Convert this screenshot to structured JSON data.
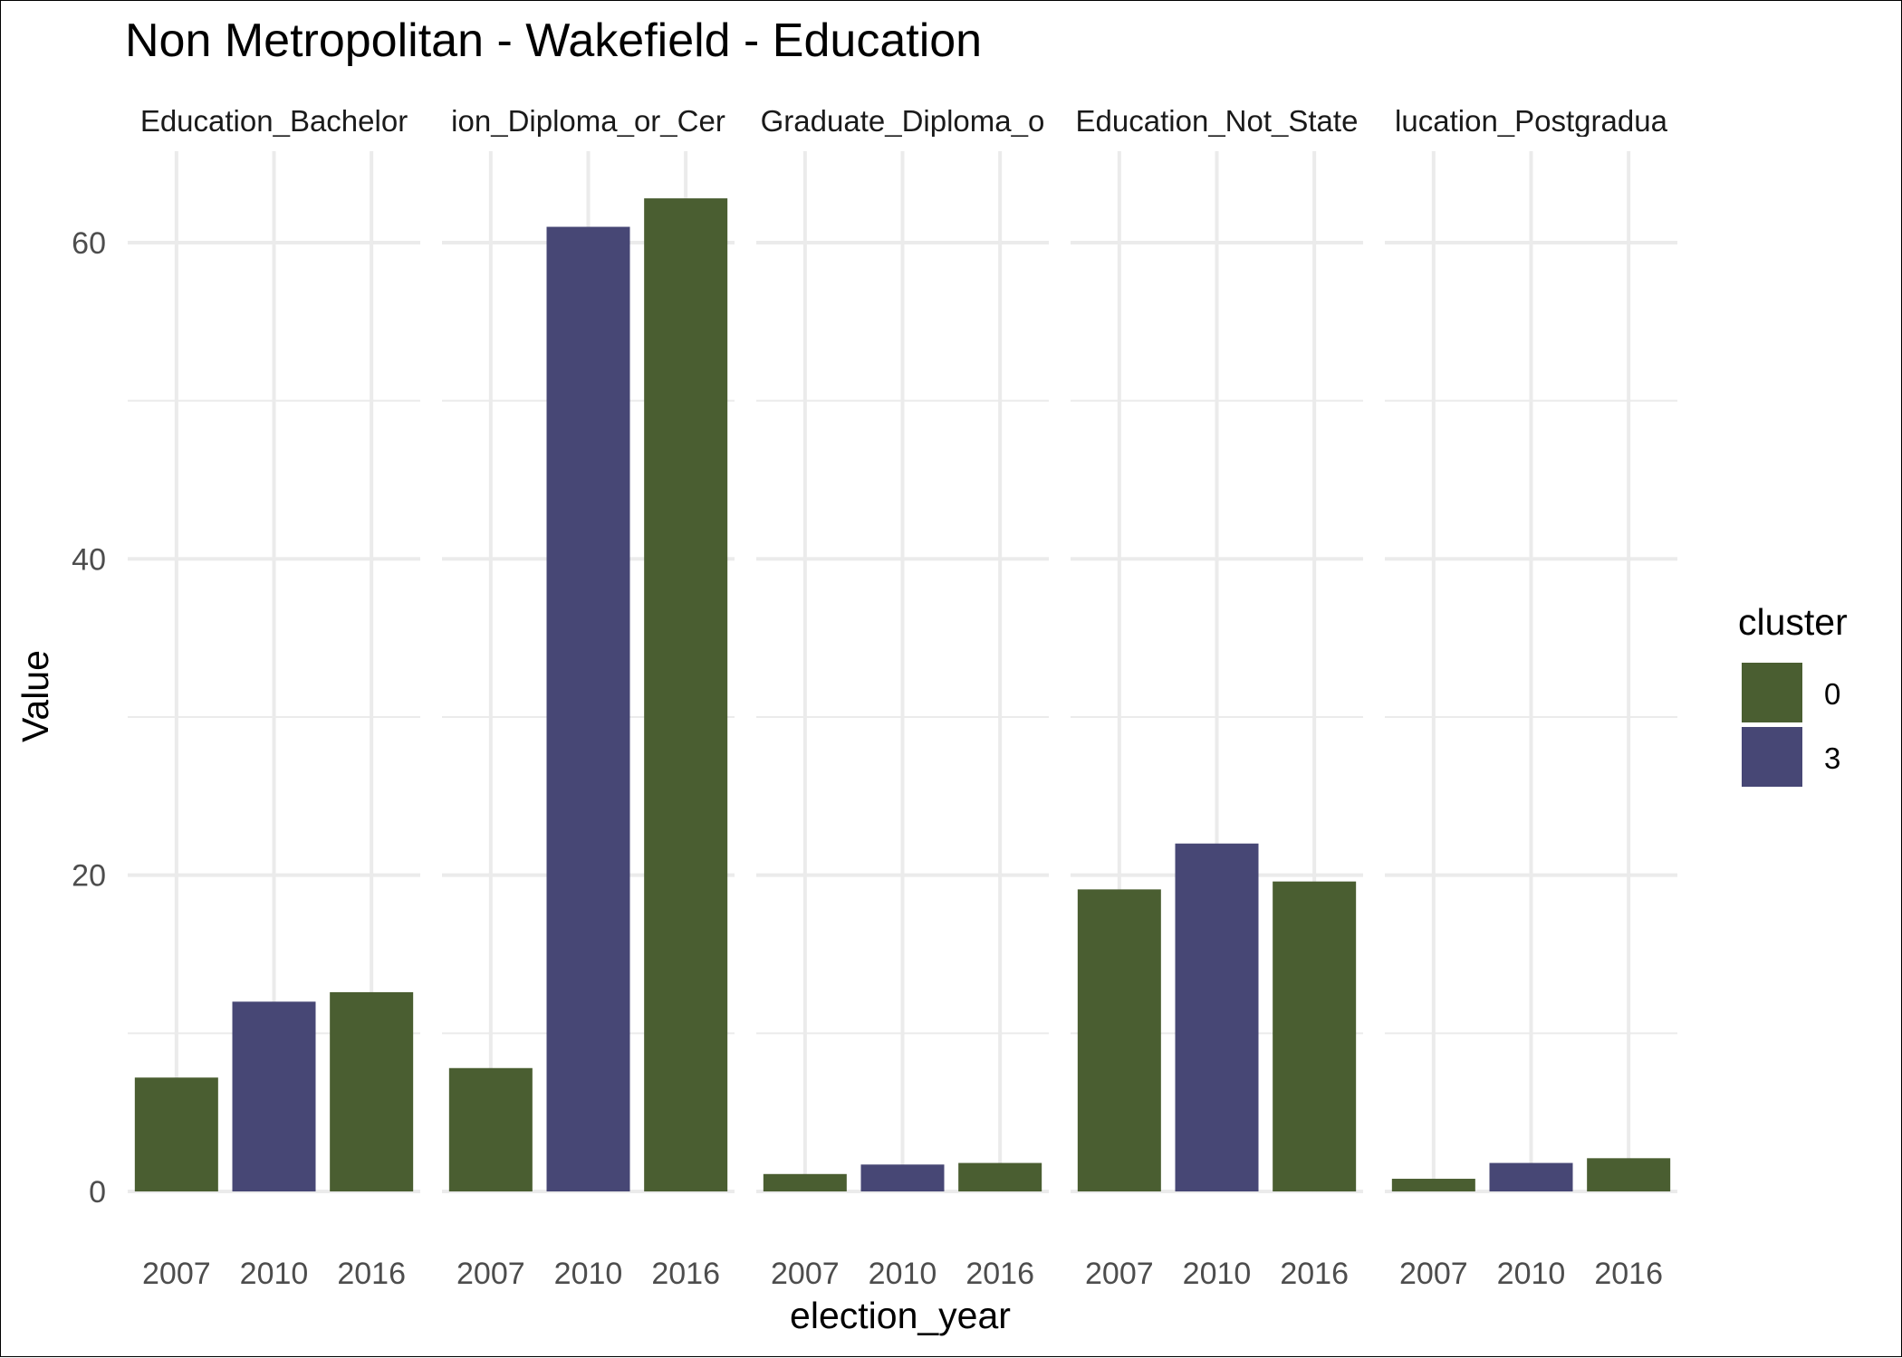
{
  "colors": {
    "cluster_0": "#4a5e31",
    "cluster_3": "#474775",
    "grid": "#ebebeb"
  },
  "chart_data": {
    "type": "bar",
    "title": "Non Metropolitan - Wakefield - Education",
    "xlabel": "election_year",
    "ylabel": "Value",
    "ylim": [
      0,
      65
    ],
    "yticks": [
      0,
      20,
      40,
      60
    ],
    "categories": [
      "2007",
      "2010",
      "2016"
    ],
    "legend": {
      "title": "cluster",
      "position": "right",
      "entries": [
        "0",
        "3"
      ]
    },
    "facets": [
      {
        "label": "Education_Bachelor",
        "values": [
          7.2,
          12.0,
          12.6
        ],
        "clusters": [
          "0",
          "3",
          "0"
        ]
      },
      {
        "label": "ion_Diploma_or_Cer",
        "values": [
          7.8,
          61.0,
          62.8
        ],
        "clusters": [
          "0",
          "3",
          "0"
        ]
      },
      {
        "label": "Graduate_Diploma_o",
        "values": [
          1.1,
          1.7,
          1.8
        ],
        "clusters": [
          "0",
          "3",
          "0"
        ]
      },
      {
        "label": "Education_Not_State",
        "values": [
          19.1,
          22.0,
          19.6
        ],
        "clusters": [
          "0",
          "3",
          "0"
        ]
      },
      {
        "label": "lucation_Postgradua",
        "values": [
          0.8,
          1.8,
          2.1
        ],
        "clusters": [
          "0",
          "3",
          "0"
        ]
      }
    ]
  }
}
